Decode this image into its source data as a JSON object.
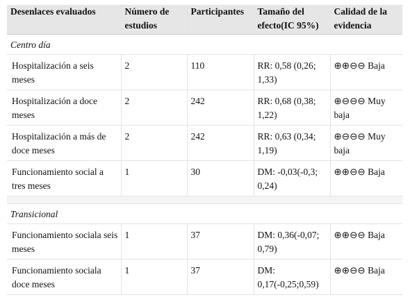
{
  "columns": [
    "Desenlaces evaluados",
    "Número de estudios",
    "Participantes",
    "Tamaño del efecto(IC 95%)",
    "Calidad de la evidencia"
  ],
  "sections": [
    {
      "title": "Centro día",
      "rows": [
        {
          "outcome": "Hospitalización a seis meses",
          "studies": "2",
          "participants": "110",
          "effect": "RR: 0,58 (0,26; 1,33)",
          "quality": "⊕⊕⊖⊖ Baja"
        },
        {
          "outcome": "Hospitalización a doce meses",
          "studies": "2",
          "participants": "242",
          "effect": "RR: 0,68 (0,38; 1,22)",
          "quality": "⊕⊖⊖⊖ Muy baja"
        },
        {
          "outcome": "Hospitalización a más de doce meses",
          "studies": "2",
          "participants": "242",
          "effect": "RR: 0,63 (0,34; 1,19)",
          "quality": "⊕⊖⊖⊖ Muy baja"
        },
        {
          "outcome": "Funcionamiento social a tres meses",
          "studies": "1",
          "participants": "30",
          "effect": "DM: -0,03(-0,3; 0,24)",
          "quality": "⊕⊕⊖⊖ Baja"
        }
      ]
    },
    {
      "title": "Transicional",
      "rows": [
        {
          "outcome": "Funcionamiento sociala seis meses",
          "studies": "1",
          "participants": "37",
          "effect": "DM: 0,36(-0,07; 0,79)",
          "quality": "⊕⊕⊖⊖ Baja"
        },
        {
          "outcome": "Funcionamiento sociala doce meses",
          "studies": "1",
          "participants": "37",
          "effect": "DM: 0,17(-0,25;0,59)",
          "quality": "⊕⊕⊖⊖ Baja"
        }
      ]
    }
  ]
}
